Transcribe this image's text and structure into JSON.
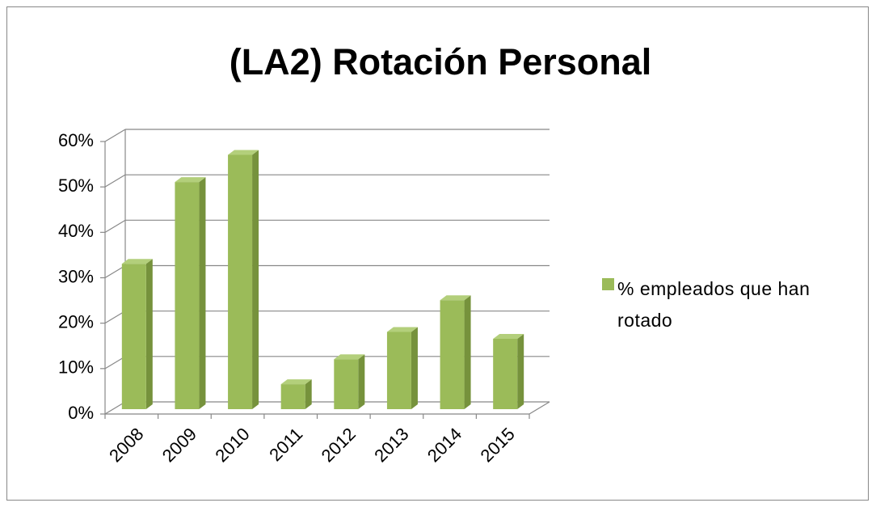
{
  "chart_data": {
    "type": "bar3d",
    "title": "(LA2) Rotación Personal",
    "categories": [
      "2008",
      "2009",
      "2010",
      "2011",
      "2012",
      "2013",
      "2014",
      "2015"
    ],
    "series": [
      {
        "name": "% empleados que han rotado",
        "color": "#9bbb59",
        "values": [
          32,
          50,
          56,
          5.5,
          11,
          17,
          24,
          15.5
        ]
      }
    ],
    "ylim": [
      0,
      60
    ],
    "yticks": [
      {
        "value": 0,
        "label": "0%"
      },
      {
        "value": 10,
        "label": "10%"
      },
      {
        "value": 20,
        "label": "20%"
      },
      {
        "value": 30,
        "label": "30%"
      },
      {
        "value": 40,
        "label": "40%"
      },
      {
        "value": 50,
        "label": "50%"
      },
      {
        "value": 60,
        "label": "60%"
      }
    ],
    "grid": true,
    "legend": "right"
  }
}
